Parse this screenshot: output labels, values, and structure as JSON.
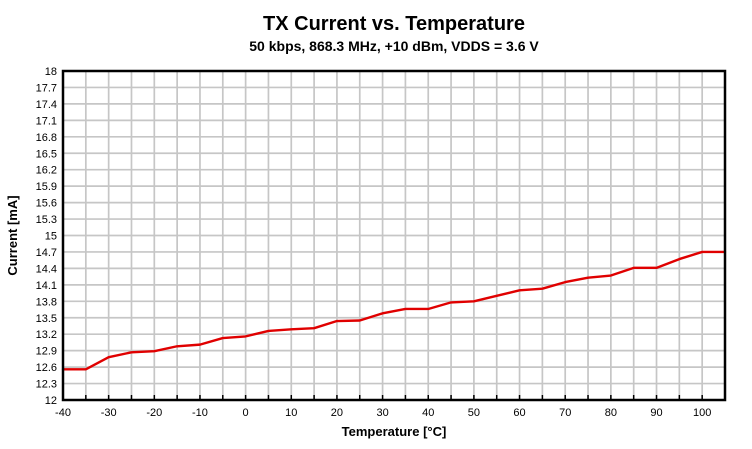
{
  "chart_data": {
    "type": "line",
    "title": "TX Current vs. Temperature",
    "subtitle": "50 kbps, 868.3 MHz, +10 dBm, VDDS = 3.6 V",
    "xlabel": "Temperature [°C]",
    "ylabel": "Current [mA]",
    "xlim": [
      -40,
      105
    ],
    "ylim": [
      12,
      18
    ],
    "x_label_step": 10,
    "x_grid_step": 5,
    "y_step": 0.3,
    "grid": true,
    "legend_position": "none",
    "colors": {
      "line": "#E00000",
      "grid": "#C6C6C6",
      "axis": "#000000",
      "background": "#FFFFFF",
      "text": "#000000"
    },
    "series": [
      {
        "name": "TX current",
        "x": [
          -40,
          -35,
          -30,
          -25,
          -20,
          -15,
          -10,
          -5,
          0,
          5,
          10,
          15,
          20,
          25,
          30,
          35,
          40,
          45,
          50,
          55,
          60,
          65,
          70,
          75,
          80,
          85,
          90,
          95,
          100,
          105
        ],
        "values": [
          12.56,
          12.56,
          12.78,
          12.87,
          12.89,
          12.98,
          13.01,
          13.13,
          13.16,
          13.26,
          13.29,
          13.31,
          13.44,
          13.45,
          13.58,
          13.66,
          13.66,
          13.78,
          13.8,
          13.9,
          14.0,
          14.03,
          14.15,
          14.23,
          14.27,
          14.41,
          14.41,
          14.57,
          14.7,
          14.7
        ]
      }
    ]
  }
}
